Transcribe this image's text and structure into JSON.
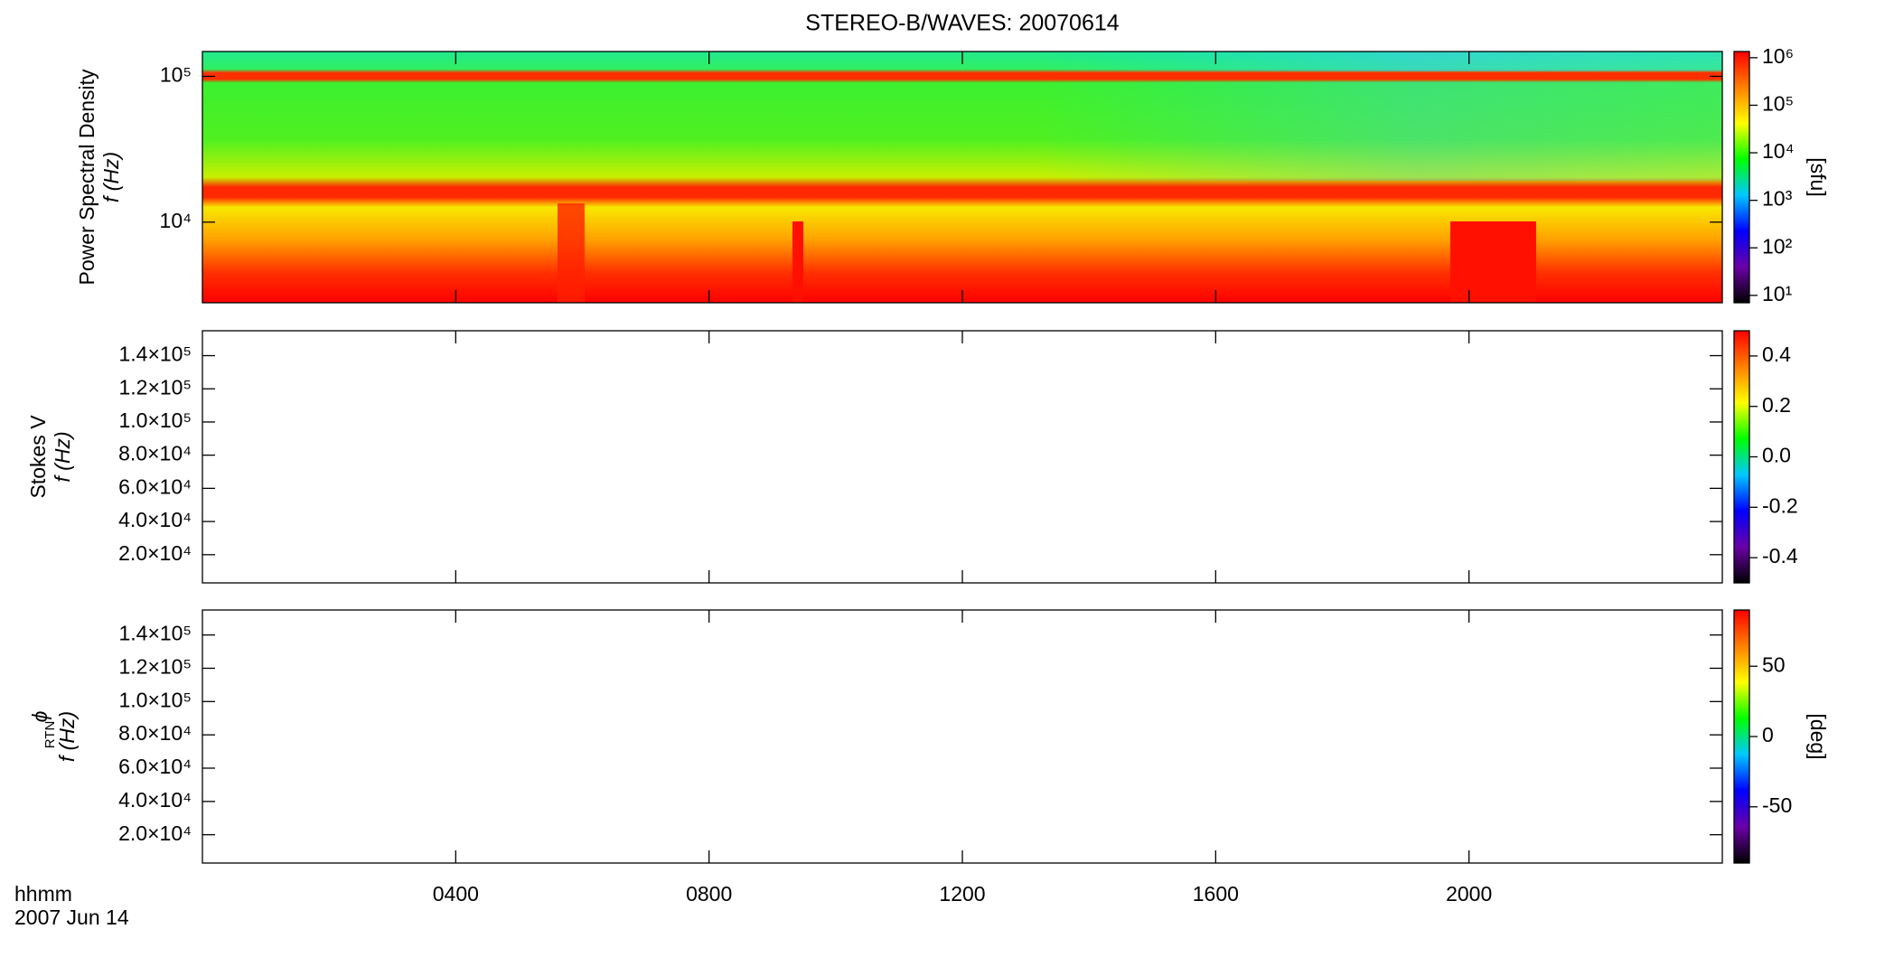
{
  "chart_data": [
    {
      "type": "heatmap",
      "title": "STEREO-B/WAVES: 20070614",
      "ylabel": "Power Spectral Density",
      "ylabel2": "f (Hz)",
      "ylog": true,
      "ylim": [
        2800,
        148000
      ],
      "yticks": [
        {
          "value": 10000,
          "label": "10⁴"
        },
        {
          "value": 100000,
          "label": "10⁵"
        }
      ],
      "colorbar": {
        "label": "[sfu]",
        "log": true,
        "lim": [
          7,
          1350000
        ],
        "ticks": [
          {
            "value": 10,
            "label": "10¹"
          },
          {
            "value": 100,
            "label": "10²"
          },
          {
            "value": 1000,
            "label": "10³"
          },
          {
            "value": 10000,
            "label": "10⁴"
          },
          {
            "value": 100000,
            "label": "10⁵"
          },
          {
            "value": 1000000,
            "label": "10⁶"
          }
        ]
      },
      "colormap": [
        "#000000",
        "#6a00a8",
        "#0000ff",
        "#00c8ff",
        "#00ff00",
        "#ffff00",
        "#ff8000",
        "#ff0000"
      ]
    },
    {
      "type": "heatmap",
      "ylabel": "Stokes V",
      "ylabel2": "f (Hz)",
      "ylog": false,
      "ylim": [
        3000,
        155000
      ],
      "yticks": [
        {
          "value": 20000,
          "label": "2.0×10⁴"
        },
        {
          "value": 40000,
          "label": "4.0×10⁴"
        },
        {
          "value": 60000,
          "label": "6.0×10⁴"
        },
        {
          "value": 80000,
          "label": "8.0×10⁴"
        },
        {
          "value": 100000,
          "label": "1.0×10⁵"
        },
        {
          "value": 120000,
          "label": "1.2×10⁵"
        },
        {
          "value": 140000,
          "label": "1.4×10⁵"
        }
      ],
      "colorbar": {
        "log": false,
        "lim": [
          -0.5,
          0.5
        ],
        "ticks": [
          -0.4,
          -0.2,
          {
            "value": 0,
            "label": "0.0"
          },
          0.2,
          0.4
        ]
      }
    },
    {
      "type": "heatmap",
      "ylabel": "ϕ",
      "ylabel_subscript": "RTN",
      "ylabel2": "f (Hz)",
      "ylog": false,
      "ylim": [
        3000,
        155000
      ],
      "yticks": [
        {
          "value": 20000,
          "label": "2.0×10⁴"
        },
        {
          "value": 40000,
          "label": "4.0×10⁴"
        },
        {
          "value": 60000,
          "label": "6.0×10⁴"
        },
        {
          "value": 80000,
          "label": "8.0×10⁴"
        },
        {
          "value": 100000,
          "label": "1.0×10⁵"
        },
        {
          "value": 120000,
          "label": "1.2×10⁵"
        },
        {
          "value": 140000,
          "label": "1.4×10⁵"
        }
      ],
      "colorbar": {
        "label": "[deg]",
        "log": false,
        "lim": [
          -90,
          90
        ],
        "ticks": [
          -50,
          0,
          50
        ]
      },
      "xlabel": "hhmm",
      "date": "2007 Jun 14",
      "xlim": [
        0,
        24
      ],
      "xticks": [
        {
          "value": 4,
          "label": "0400"
        },
        {
          "value": 8,
          "label": "0800"
        },
        {
          "value": 12,
          "label": "1200"
        },
        {
          "value": 16,
          "label": "1600"
        },
        {
          "value": 20,
          "label": "2000"
        }
      ]
    }
  ]
}
